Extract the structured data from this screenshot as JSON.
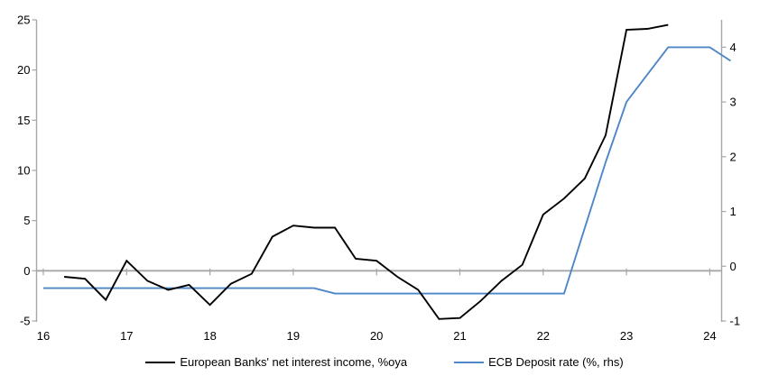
{
  "chart_data": {
    "type": "line",
    "title": "",
    "background": "#ffffff",
    "axis_color": "#a6a6a6",
    "zero_line_color": "#a6a6a6",
    "grid": "zero-line-only",
    "legend_position": "bottom-center",
    "x_axis": {
      "tick_labels": [
        "16",
        "17",
        "18",
        "19",
        "20",
        "21",
        "22",
        "23",
        "24"
      ],
      "tick_values": [
        16,
        17,
        18,
        19,
        20,
        21,
        22,
        23,
        24
      ]
    },
    "left_y_axis": {
      "tick_labels": [
        "25",
        "20",
        "15",
        "10",
        "5",
        "0",
        "-5"
      ],
      "tick_values": [
        25,
        20,
        15,
        10,
        5,
        0,
        -5
      ],
      "range": [
        -5,
        25
      ]
    },
    "right_y_axis": {
      "tick_labels": [
        "4",
        "3",
        "2",
        "1",
        "0",
        "-1"
      ],
      "tick_values": [
        4,
        3,
        2,
        1,
        0,
        -1
      ],
      "range": [
        -1,
        4.5
      ]
    },
    "series": [
      {
        "name": "European Banks' net interest income, %oya",
        "axis": "left",
        "color": "#000000",
        "stroke_width": 1.9,
        "x": [
          16.25,
          16.5,
          16.75,
          17.0,
          17.25,
          17.5,
          17.75,
          18.0,
          18.25,
          18.5,
          18.75,
          19.0,
          19.25,
          19.5,
          19.75,
          20.0,
          20.25,
          20.5,
          20.75,
          21.0,
          21.25,
          21.5,
          21.75,
          22.0,
          22.25,
          22.5,
          22.75,
          23.0,
          23.25,
          23.5
        ],
        "values": [
          -0.6,
          -0.8,
          -2.9,
          1.0,
          -1.0,
          -1.9,
          -1.4,
          -3.4,
          -1.3,
          -0.3,
          3.4,
          4.5,
          4.3,
          4.3,
          1.2,
          1.0,
          -0.6,
          -1.9,
          -4.8,
          -4.7,
          -3.0,
          -1.0,
          0.6,
          5.6,
          7.2,
          9.2,
          13.5,
          24.0,
          24.1,
          24.5
        ]
      },
      {
        "name": "ECB Deposit rate (%, rhs)",
        "axis": "right",
        "color": "#4e86c6",
        "stroke_width": 1.9,
        "x": [
          16.0,
          16.25,
          16.5,
          16.75,
          17.0,
          17.25,
          17.5,
          17.75,
          18.0,
          18.25,
          18.5,
          18.75,
          19.0,
          19.25,
          19.5,
          19.75,
          20.0,
          20.25,
          20.5,
          20.75,
          21.0,
          21.25,
          21.5,
          21.75,
          22.0,
          22.25,
          22.5,
          22.75,
          23.0,
          23.25,
          23.5,
          23.75,
          24.0,
          24.25
        ],
        "values": [
          -0.4,
          -0.4,
          -0.4,
          -0.4,
          -0.4,
          -0.4,
          -0.4,
          -0.4,
          -0.4,
          -0.4,
          -0.4,
          -0.4,
          -0.4,
          -0.4,
          -0.5,
          -0.5,
          -0.5,
          -0.5,
          -0.5,
          -0.5,
          -0.5,
          -0.5,
          -0.5,
          -0.5,
          -0.5,
          -0.5,
          0.7,
          1.9,
          3.0,
          3.5,
          4.0,
          4.0,
          4.0,
          3.75
        ]
      }
    ]
  }
}
